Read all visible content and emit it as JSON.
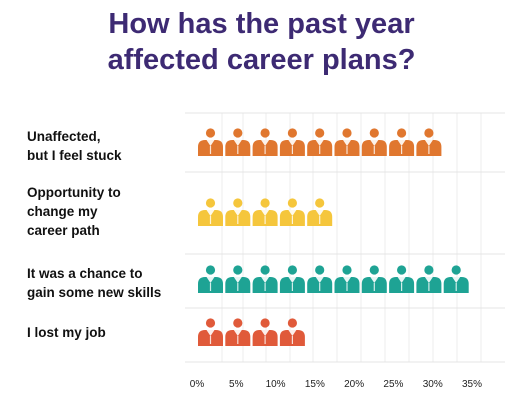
{
  "title_lines": [
    "How has the past year",
    "affected career plans?"
  ],
  "chart_data": {
    "type": "bar",
    "subtype": "pictograph",
    "marker_icon": "person-bust-icon",
    "title": "How has the past year affected career plans?",
    "categories": [
      {
        "lines": [
          "Unaffected,",
          "but I feel stuck"
        ]
      },
      {
        "lines": [
          "Opportunity to",
          "change my",
          "career path"
        ]
      },
      {
        "lines": [
          "It was a chance to",
          "gain some new skills"
        ]
      },
      {
        "lines": [
          "I lost my job"
        ]
      }
    ],
    "values": [
      32,
      16,
      34,
      13
    ],
    "icon_counts": [
      9,
      5,
      10,
      4
    ],
    "colors": [
      "#e0772f",
      "#f5c63c",
      "#1ea394",
      "#e05a3a"
    ],
    "xticks": [
      "0%",
      "5%",
      "10%",
      "15%",
      "20%",
      "25%",
      "30%",
      "35%"
    ],
    "xlim": [
      0,
      35
    ],
    "grid": true
  }
}
